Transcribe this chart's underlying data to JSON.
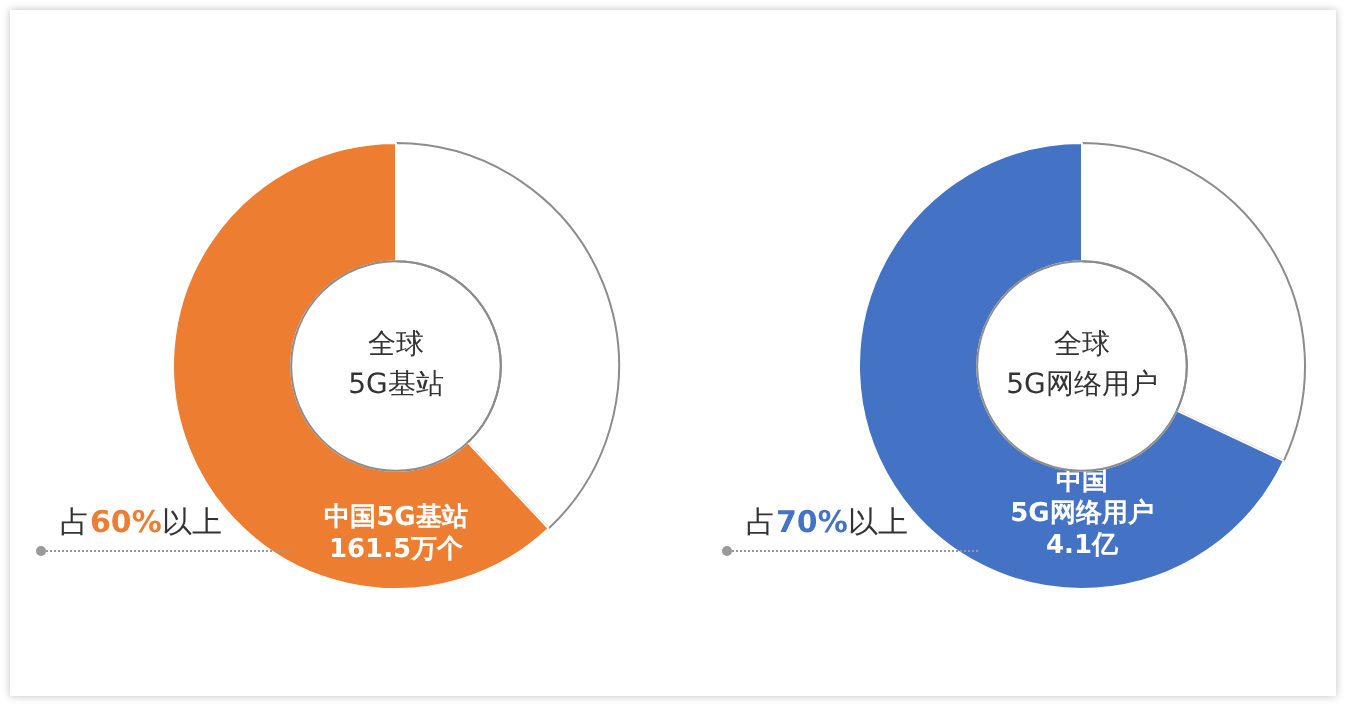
{
  "chart_data": [
    {
      "type": "donut",
      "categories": [
        null,
        "中国5G基站\n161.5万个"
      ],
      "values": [
        38,
        62
      ],
      "colors": [
        "#ffffff",
        "#ed7d31"
      ],
      "legend": false,
      "annotations": [
        "全球\n5G基站",
        "占60%以上"
      ]
    },
    {
      "type": "donut",
      "categories": [
        null,
        "中国\n5G网络用户\n4.1亿"
      ],
      "values": [
        32,
        68
      ],
      "colors": [
        "#ffffff",
        "#4472c4"
      ],
      "legend": false,
      "annotations": [
        "全球\n5G网络用户",
        "占70%以上"
      ]
    }
  ]
}
